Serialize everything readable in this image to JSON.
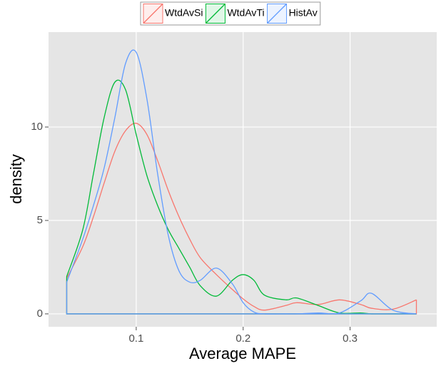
{
  "chart_data": {
    "type": "density",
    "x_label": "Average MAPE",
    "y_label": "density",
    "x": [
      0.035,
      0.05,
      0.06,
      0.07,
      0.08,
      0.09,
      0.1,
      0.11,
      0.12,
      0.13,
      0.14,
      0.15,
      0.16,
      0.175,
      0.19,
      0.2,
      0.21,
      0.22,
      0.24,
      0.25,
      0.27,
      0.29,
      0.31,
      0.32,
      0.34,
      0.362
    ],
    "series": [
      {
        "name": "WtdAvSi",
        "color": "#F8766D",
        "values": [
          1.9,
          3.6,
          5.2,
          7.0,
          8.7,
          9.8,
          10.2,
          9.6,
          8.2,
          6.6,
          5.2,
          4.0,
          3.0,
          2.1,
          1.3,
          0.8,
          0.4,
          0.2,
          0.45,
          0.6,
          0.5,
          0.75,
          0.5,
          0.3,
          0.25,
          0.75
        ]
      },
      {
        "name": "WtdAvTi",
        "color": "#00BA38",
        "values": [
          2.0,
          4.5,
          7.5,
          10.5,
          12.4,
          12.0,
          9.6,
          7.4,
          5.8,
          4.5,
          3.5,
          2.5,
          1.5,
          0.95,
          1.8,
          2.1,
          1.8,
          1.0,
          0.75,
          0.85,
          0.45,
          0.05,
          0.05,
          0,
          0,
          0
        ]
      },
      {
        "name": "HistAv",
        "color": "#619CFF",
        "values": [
          1.7,
          4.0,
          5.8,
          7.8,
          10.5,
          13.4,
          14.0,
          11.5,
          7.5,
          4.2,
          2.3,
          1.7,
          1.8,
          2.45,
          1.6,
          0.6,
          0.1,
          0,
          0,
          0,
          0.05,
          0.05,
          0.7,
          1.1,
          0.2,
          0
        ]
      }
    ],
    "xlim": [
      0.018,
      0.381
    ],
    "ylim": [
      -0.69,
      15.08
    ],
    "xticks": [
      0.1,
      0.2,
      0.3
    ],
    "yticks": [
      0,
      5,
      10
    ],
    "grid": true,
    "legend": "top"
  }
}
